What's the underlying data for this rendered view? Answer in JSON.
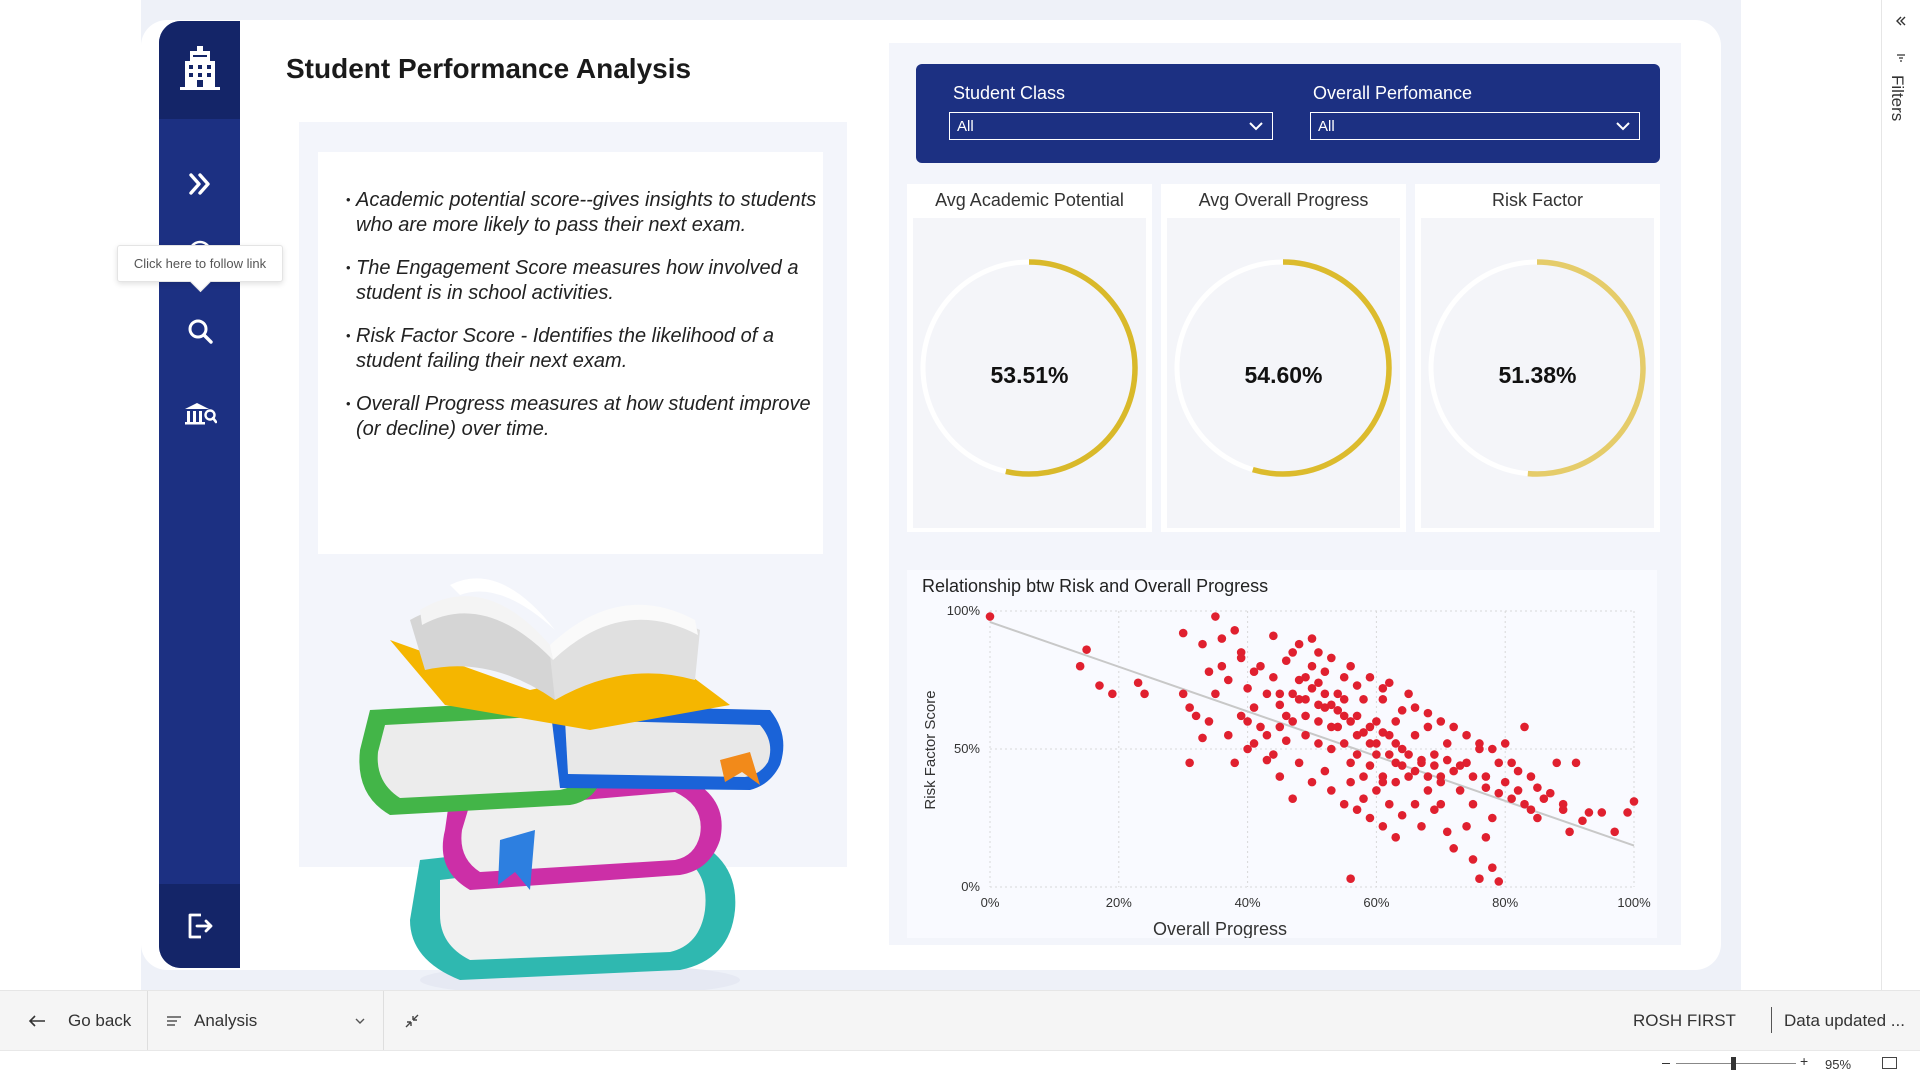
{
  "page": {
    "title": "Student Performance Analysis"
  },
  "sidebar": {
    "logo_icon": "school-building-icon",
    "items": [
      {
        "icon": "double-chevron-right-icon"
      },
      {
        "icon": "home-icon"
      },
      {
        "icon": "search-icon"
      },
      {
        "icon": "bank-chart-icon"
      }
    ],
    "exit_icon": "exit-icon",
    "tooltip": "Click here to follow link"
  },
  "notes": {
    "bullets": [
      "Academic potential score--gives insights to students who are more likely to pass their next exam.",
      "The Engagement Score  measures how involved a student is in school activities.",
      "Risk Factor Score - Identifies the likelihood of a student failing their next exam.",
      "Overall Progress measures at how student improve (or decline) over time."
    ]
  },
  "filters": {
    "student_class": {
      "label": "Student Class",
      "value": "All"
    },
    "overall_performance": {
      "label": "Overall Perfomance",
      "value": "All"
    }
  },
  "kpis": [
    {
      "title": "Avg Academic Potential",
      "value": "53.51%",
      "fraction": 0.5351,
      "color": "#d9b92a"
    },
    {
      "title": "Avg Overall Progress",
      "value": "54.60%",
      "fraction": 0.546,
      "color": "#dcbb2d"
    },
    {
      "title": "Risk Factor",
      "value": "51.38%",
      "fraction": 0.5138,
      "color": "#e5cc6a"
    }
  ],
  "chart_data": {
    "type": "scatter",
    "title": "Relationship btw Risk and Overall Progress",
    "xlabel": "Overall Progress",
    "ylabel": "Risk Factor Score",
    "xlim": [
      0,
      1
    ],
    "ylim": [
      0,
      1
    ],
    "x_ticks": [
      "0%",
      "20%",
      "40%",
      "60%",
      "80%",
      "100%"
    ],
    "y_ticks": [
      "0%",
      "50%",
      "100%"
    ],
    "point_color": "#e0202f",
    "trend_line": {
      "x": [
        0,
        1
      ],
      "y": [
        0.96,
        0.15
      ]
    },
    "points": [
      [
        0.0,
        0.98
      ],
      [
        0.14,
        0.8
      ],
      [
        0.17,
        0.73
      ],
      [
        0.15,
        0.86
      ],
      [
        0.19,
        0.7
      ],
      [
        0.23,
        0.74
      ],
      [
        0.24,
        0.7
      ],
      [
        0.3,
        0.92
      ],
      [
        0.33,
        0.88
      ],
      [
        0.35,
        0.98
      ],
      [
        0.34,
        0.78
      ],
      [
        0.31,
        0.65
      ],
      [
        0.32,
        0.62
      ],
      [
        0.34,
        0.6
      ],
      [
        0.3,
        0.7
      ],
      [
        0.31,
        0.45
      ],
      [
        0.33,
        0.54
      ],
      [
        0.35,
        0.7
      ],
      [
        0.36,
        0.8
      ],
      [
        0.37,
        0.75
      ],
      [
        0.38,
        0.93
      ],
      [
        0.39,
        0.85
      ],
      [
        0.4,
        0.6
      ],
      [
        0.41,
        0.65
      ],
      [
        0.4,
        0.72
      ],
      [
        0.42,
        0.8
      ],
      [
        0.43,
        0.55
      ],
      [
        0.44,
        0.91
      ],
      [
        0.45,
        0.7
      ],
      [
        0.46,
        0.62
      ],
      [
        0.47,
        0.85
      ],
      [
        0.48,
        0.75
      ],
      [
        0.48,
        0.68
      ],
      [
        0.49,
        0.55
      ],
      [
        0.5,
        0.8
      ],
      [
        0.5,
        0.72
      ],
      [
        0.51,
        0.6
      ],
      [
        0.52,
        0.65
      ],
      [
        0.52,
        0.78
      ],
      [
        0.53,
        0.5
      ],
      [
        0.54,
        0.7
      ],
      [
        0.54,
        0.58
      ],
      [
        0.55,
        0.62
      ],
      [
        0.56,
        0.8
      ],
      [
        0.56,
        0.45
      ],
      [
        0.57,
        0.55
      ],
      [
        0.58,
        0.68
      ],
      [
        0.58,
        0.4
      ],
      [
        0.59,
        0.52
      ],
      [
        0.6,
        0.6
      ],
      [
        0.6,
        0.48
      ],
      [
        0.61,
        0.72
      ],
      [
        0.61,
        0.38
      ],
      [
        0.62,
        0.55
      ],
      [
        0.63,
        0.45
      ],
      [
        0.63,
        0.6
      ],
      [
        0.64,
        0.5
      ],
      [
        0.65,
        0.4
      ],
      [
        0.65,
        0.7
      ],
      [
        0.66,
        0.55
      ],
      [
        0.67,
        0.45
      ],
      [
        0.68,
        0.35
      ],
      [
        0.68,
        0.58
      ],
      [
        0.69,
        0.48
      ],
      [
        0.7,
        0.4
      ],
      [
        0.7,
        0.3
      ],
      [
        0.71,
        0.52
      ],
      [
        0.72,
        0.42
      ],
      [
        0.73,
        0.35
      ],
      [
        0.74,
        0.45
      ],
      [
        0.75,
        0.3
      ],
      [
        0.76,
        0.5
      ],
      [
        0.77,
        0.4
      ],
      [
        0.78,
        0.25
      ],
      [
        0.79,
        0.45
      ],
      [
        0.8,
        0.38
      ],
      [
        0.82,
        0.35
      ],
      [
        0.83,
        0.58
      ],
      [
        0.84,
        0.28
      ],
      [
        0.85,
        0.25
      ],
      [
        0.86,
        0.32
      ],
      [
        0.88,
        0.45
      ],
      [
        0.89,
        0.28
      ],
      [
        0.9,
        0.2
      ],
      [
        0.91,
        0.45
      ],
      [
        0.93,
        0.27
      ],
      [
        0.95,
        0.27
      ],
      [
        0.97,
        0.2
      ],
      [
        0.99,
        0.27
      ],
      [
        1.0,
        0.31
      ],
      [
        0.42,
        0.58
      ],
      [
        0.44,
        0.48
      ],
      [
        0.45,
        0.4
      ],
      [
        0.46,
        0.53
      ],
      [
        0.47,
        0.32
      ],
      [
        0.48,
        0.45
      ],
      [
        0.49,
        0.62
      ],
      [
        0.5,
        0.38
      ],
      [
        0.51,
        0.52
      ],
      [
        0.52,
        0.42
      ],
      [
        0.53,
        0.35
      ],
      [
        0.55,
        0.3
      ],
      [
        0.56,
        0.38
      ],
      [
        0.57,
        0.28
      ],
      [
        0.58,
        0.32
      ],
      [
        0.59,
        0.25
      ],
      [
        0.6,
        0.35
      ],
      [
        0.61,
        0.22
      ],
      [
        0.62,
        0.3
      ],
      [
        0.63,
        0.18
      ],
      [
        0.64,
        0.26
      ],
      [
        0.66,
        0.3
      ],
      [
        0.67,
        0.22
      ],
      [
        0.69,
        0.28
      ],
      [
        0.71,
        0.2
      ],
      [
        0.72,
        0.14
      ],
      [
        0.74,
        0.22
      ],
      [
        0.75,
        0.1
      ],
      [
        0.77,
        0.18
      ],
      [
        0.78,
        0.07
      ],
      [
        0.76,
        0.03
      ],
      [
        0.79,
        0.02
      ],
      [
        0.56,
        0.03
      ],
      [
        0.36,
        0.9
      ],
      [
        0.39,
        0.83
      ],
      [
        0.41,
        0.78
      ],
      [
        0.43,
        0.7
      ],
      [
        0.44,
        0.76
      ],
      [
        0.46,
        0.82
      ],
      [
        0.48,
        0.88
      ],
      [
        0.5,
        0.9
      ],
      [
        0.51,
        0.85
      ],
      [
        0.53,
        0.83
      ],
      [
        0.55,
        0.76
      ],
      [
        0.57,
        0.73
      ],
      [
        0.59,
        0.76
      ],
      [
        0.61,
        0.68
      ],
      [
        0.62,
        0.74
      ],
      [
        0.64,
        0.64
      ],
      [
        0.66,
        0.65
      ],
      [
        0.68,
        0.63
      ],
      [
        0.7,
        0.6
      ],
      [
        0.72,
        0.58
      ],
      [
        0.74,
        0.55
      ],
      [
        0.76,
        0.52
      ],
      [
        0.78,
        0.5
      ],
      [
        0.8,
        0.52
      ],
      [
        0.81,
        0.45
      ],
      [
        0.82,
        0.42
      ],
      [
        0.84,
        0.4
      ],
      [
        0.52,
        0.7
      ],
      [
        0.54,
        0.64
      ],
      [
        0.56,
        0.6
      ],
      [
        0.58,
        0.56
      ],
      [
        0.6,
        0.52
      ],
      [
        0.62,
        0.48
      ],
      [
        0.64,
        0.44
      ],
      [
        0.66,
        0.42
      ],
      [
        0.68,
        0.4
      ],
      [
        0.7,
        0.38
      ],
      [
        0.45,
        0.66
      ],
      [
        0.47,
        0.6
      ],
      [
        0.49,
        0.68
      ],
      [
        0.51,
        0.74
      ],
      [
        0.53,
        0.66
      ],
      [
        0.55,
        0.52
      ],
      [
        0.57,
        0.48
      ],
      [
        0.59,
        0.44
      ],
      [
        0.61,
        0.4
      ],
      [
        0.63,
        0.38
      ],
      [
        0.4,
        0.5
      ],
      [
        0.38,
        0.45
      ],
      [
        0.37,
        0.55
      ],
      [
        0.39,
        0.62
      ],
      [
        0.41,
        0.52
      ],
      [
        0.43,
        0.46
      ],
      [
        0.45,
        0.58
      ],
      [
        0.47,
        0.7
      ],
      [
        0.49,
        0.76
      ],
      [
        0.51,
        0.66
      ],
      [
        0.53,
        0.58
      ],
      [
        0.55,
        0.68
      ],
      [
        0.57,
        0.62
      ],
      [
        0.59,
        0.58
      ],
      [
        0.61,
        0.56
      ],
      [
        0.63,
        0.52
      ],
      [
        0.65,
        0.48
      ],
      [
        0.67,
        0.46
      ],
      [
        0.69,
        0.44
      ],
      [
        0.71,
        0.46
      ],
      [
        0.73,
        0.44
      ],
      [
        0.75,
        0.4
      ],
      [
        0.77,
        0.36
      ],
      [
        0.79,
        0.34
      ],
      [
        0.81,
        0.32
      ],
      [
        0.83,
        0.3
      ],
      [
        0.85,
        0.36
      ],
      [
        0.87,
        0.34
      ],
      [
        0.89,
        0.3
      ],
      [
        0.92,
        0.24
      ]
    ]
  },
  "bottom_bar": {
    "back_label": "Go back",
    "page_select": "Analysis",
    "user": "ROSH FIRST",
    "data_updated": "Data updated ...",
    "zoom": "95%"
  },
  "filters_pane": {
    "label": "Filters"
  }
}
